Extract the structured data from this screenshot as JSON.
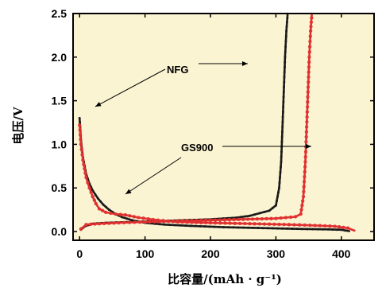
{
  "chart_data": {
    "type": "scatter",
    "xlabel": "比容量/(mAh · g⁻¹)",
    "ylabel": "电压/V",
    "xlim": [
      -10,
      450
    ],
    "ylim": [
      -0.1,
      2.5
    ],
    "x_ticks": [
      0,
      100,
      200,
      300,
      400
    ],
    "y_ticks": [
      0.0,
      0.5,
      1.0,
      1.5,
      2.0,
      2.5
    ],
    "y_tick_labels": [
      "0.0",
      "0.5",
      "1.0",
      "1.5",
      "2.0",
      "2.5"
    ],
    "background_color": "#fbf4d2",
    "annotations": [
      {
        "text": "NFG",
        "points_to": "black-curve"
      },
      {
        "text": "GS900",
        "points_to": "red-curve"
      }
    ],
    "series": [
      {
        "color": "#1a1a1a",
        "marker": "star",
        "discharge": [
          [
            0,
            1.3
          ],
          [
            2,
            1.05
          ],
          [
            5,
            0.85
          ],
          [
            10,
            0.66
          ],
          [
            15,
            0.55
          ],
          [
            20,
            0.47
          ],
          [
            28,
            0.38
          ],
          [
            36,
            0.31
          ],
          [
            45,
            0.25
          ],
          [
            55,
            0.2
          ],
          [
            65,
            0.165
          ],
          [
            80,
            0.13
          ],
          [
            100,
            0.1
          ],
          [
            130,
            0.08
          ],
          [
            170,
            0.065
          ],
          [
            220,
            0.05
          ],
          [
            280,
            0.04
          ],
          [
            340,
            0.03
          ],
          [
            380,
            0.025
          ],
          [
            400,
            0.02
          ],
          [
            412,
            0.005
          ]
        ],
        "charge": [
          [
            2,
            0.02
          ],
          [
            8,
            0.06
          ],
          [
            20,
            0.09
          ],
          [
            40,
            0.1
          ],
          [
            80,
            0.11
          ],
          [
            120,
            0.12
          ],
          [
            160,
            0.13
          ],
          [
            200,
            0.14
          ],
          [
            240,
            0.16
          ],
          [
            260,
            0.18
          ],
          [
            275,
            0.21
          ],
          [
            290,
            0.24
          ],
          [
            300,
            0.3
          ],
          [
            305,
            0.5
          ],
          [
            308,
            0.8
          ],
          [
            310,
            1.2
          ],
          [
            312,
            1.6
          ],
          [
            314,
            2.0
          ],
          [
            316,
            2.3
          ],
          [
            318,
            2.5
          ]
        ]
      },
      {
        "color": "#e03030",
        "marker": "circle",
        "discharge": [
          [
            0,
            1.22
          ],
          [
            2,
            1.0
          ],
          [
            5,
            0.82
          ],
          [
            10,
            0.62
          ],
          [
            15,
            0.5
          ],
          [
            20,
            0.4
          ],
          [
            25,
            0.32
          ],
          [
            30,
            0.26
          ],
          [
            40,
            0.22
          ],
          [
            55,
            0.2
          ],
          [
            70,
            0.19
          ],
          [
            90,
            0.16
          ],
          [
            120,
            0.13
          ],
          [
            150,
            0.11
          ],
          [
            200,
            0.1
          ],
          [
            260,
            0.09
          ],
          [
            320,
            0.08
          ],
          [
            360,
            0.07
          ],
          [
            390,
            0.06
          ],
          [
            410,
            0.04
          ],
          [
            420,
            0.01
          ]
        ],
        "charge": [
          [
            2,
            0.03
          ],
          [
            10,
            0.08
          ],
          [
            30,
            0.09
          ],
          [
            60,
            0.1
          ],
          [
            100,
            0.11
          ],
          [
            150,
            0.12
          ],
          [
            200,
            0.13
          ],
          [
            250,
            0.14
          ],
          [
            300,
            0.15
          ],
          [
            330,
            0.17
          ],
          [
            338,
            0.2
          ],
          [
            342,
            0.4
          ],
          [
            345,
            0.8
          ],
          [
            347,
            1.2
          ],
          [
            349,
            1.6
          ],
          [
            351,
            2.0
          ],
          [
            353,
            2.3
          ],
          [
            355,
            2.5
          ]
        ]
      }
    ]
  }
}
